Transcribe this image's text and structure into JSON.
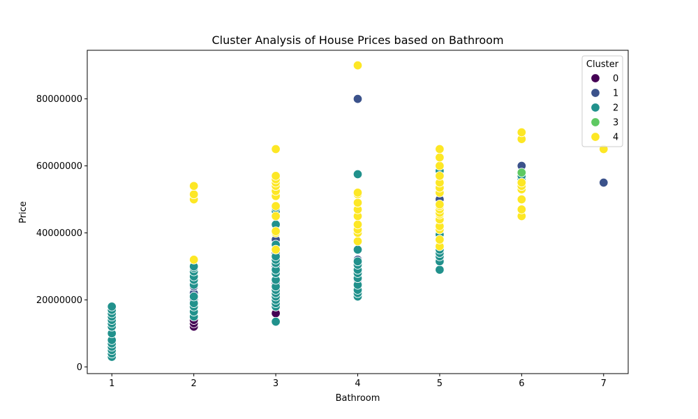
{
  "chart_data": {
    "type": "scatter",
    "title": "Cluster Analysis of House Prices based on Bathroom",
    "xlabel": "Bathroom",
    "ylabel": "Price",
    "xlim": [
      0.7,
      7.3
    ],
    "ylim": [
      -2000000,
      94500000
    ],
    "xticks": [
      1,
      2,
      3,
      4,
      5,
      6,
      7
    ],
    "yticks": [
      0,
      20000000,
      40000000,
      60000000,
      80000000
    ],
    "grid": false,
    "legend": {
      "title": "Cluster",
      "position": "top-right"
    },
    "series": [
      {
        "name": "0",
        "color": "#440154",
        "points": [
          [
            2,
            12000000
          ],
          [
            2,
            13000000
          ],
          [
            2,
            14000000
          ],
          [
            2,
            15000000
          ],
          [
            3,
            16000000
          ],
          [
            3,
            18000000
          ],
          [
            4,
            22000000
          ]
        ]
      },
      {
        "name": "1",
        "color": "#3b528b",
        "points": [
          [
            2,
            20000000
          ],
          [
            2,
            22000000
          ],
          [
            2,
            24000000
          ],
          [
            3,
            25000000
          ],
          [
            3,
            30000000
          ],
          [
            3,
            34000000
          ],
          [
            3,
            38000000
          ],
          [
            4,
            26000000
          ],
          [
            4,
            32000000
          ],
          [
            4,
            80000000
          ],
          [
            5,
            32000000
          ],
          [
            5,
            50000000
          ],
          [
            6,
            60000000
          ],
          [
            7,
            55000000
          ]
        ]
      },
      {
        "name": "2",
        "color": "#21918c",
        "points": [
          [
            1,
            3000000
          ],
          [
            1,
            4000000
          ],
          [
            1,
            5000000
          ],
          [
            1,
            6000000
          ],
          [
            1,
            7000000
          ],
          [
            1,
            8000000
          ],
          [
            1,
            10000000
          ],
          [
            1,
            12000000
          ],
          [
            1,
            13000000
          ],
          [
            1,
            14000000
          ],
          [
            1,
            15000000
          ],
          [
            1,
            16000000
          ],
          [
            1,
            17000000
          ],
          [
            1,
            18000000
          ],
          [
            2,
            15000000
          ],
          [
            2,
            16500000
          ],
          [
            2,
            18000000
          ],
          [
            2,
            19000000
          ],
          [
            2,
            21000000
          ],
          [
            2,
            24500000
          ],
          [
            2,
            26000000
          ],
          [
            2,
            27000000
          ],
          [
            2,
            28500000
          ],
          [
            2,
            29500000
          ],
          [
            2,
            30000000
          ],
          [
            3,
            13500000
          ],
          [
            3,
            18000000
          ],
          [
            3,
            19000000
          ],
          [
            3,
            20000000
          ],
          [
            3,
            21000000
          ],
          [
            3,
            22000000
          ],
          [
            3,
            23000000
          ],
          [
            3,
            24000000
          ],
          [
            3,
            26000000
          ],
          [
            3,
            28000000
          ],
          [
            3,
            29000000
          ],
          [
            3,
            31000000
          ],
          [
            3,
            32000000
          ],
          [
            3,
            33000000
          ],
          [
            3,
            35000000
          ],
          [
            3,
            36500000
          ],
          [
            3,
            40000000
          ],
          [
            3,
            42500000
          ],
          [
            3,
            46500000
          ],
          [
            3,
            47500000
          ],
          [
            4,
            21000000
          ],
          [
            4,
            22000000
          ],
          [
            4,
            23000000
          ],
          [
            4,
            24500000
          ],
          [
            4,
            26500000
          ],
          [
            4,
            28000000
          ],
          [
            4,
            29000000
          ],
          [
            4,
            30500000
          ],
          [
            4,
            31500000
          ],
          [
            4,
            35000000
          ],
          [
            4,
            57500000
          ],
          [
            5,
            29000000
          ],
          [
            5,
            31500000
          ],
          [
            5,
            33000000
          ],
          [
            5,
            34000000
          ],
          [
            5,
            35000000
          ],
          [
            5,
            39500000
          ],
          [
            5,
            58500000
          ],
          [
            6,
            56000000
          ],
          [
            6,
            57000000
          ]
        ]
      },
      {
        "name": "3",
        "color": "#5ec962",
        "points": [
          [
            6,
            58000000
          ]
        ]
      },
      {
        "name": "4",
        "color": "#fde725",
        "points": [
          [
            2,
            32000000
          ],
          [
            2,
            50000000
          ],
          [
            2,
            51500000
          ],
          [
            2,
            54000000
          ],
          [
            3,
            35000000
          ],
          [
            3,
            40000000
          ],
          [
            3,
            40500000
          ],
          [
            3,
            45000000
          ],
          [
            3,
            48000000
          ],
          [
            3,
            51000000
          ],
          [
            3,
            52500000
          ],
          [
            3,
            54000000
          ],
          [
            3,
            55000000
          ],
          [
            3,
            56000000
          ],
          [
            3,
            57000000
          ],
          [
            3,
            65000000
          ],
          [
            4,
            37500000
          ],
          [
            4,
            40000000
          ],
          [
            4,
            41000000
          ],
          [
            4,
            42500000
          ],
          [
            4,
            45000000
          ],
          [
            4,
            47000000
          ],
          [
            4,
            49000000
          ],
          [
            4,
            51500000
          ],
          [
            4,
            52000000
          ],
          [
            4,
            90000000
          ],
          [
            5,
            36000000
          ],
          [
            5,
            38000000
          ],
          [
            5,
            41000000
          ],
          [
            5,
            42000000
          ],
          [
            5,
            44000000
          ],
          [
            5,
            45500000
          ],
          [
            5,
            46000000
          ],
          [
            5,
            47000000
          ],
          [
            5,
            48000000
          ],
          [
            5,
            48500000
          ],
          [
            5,
            52000000
          ],
          [
            5,
            53500000
          ],
          [
            5,
            55000000
          ],
          [
            5,
            57000000
          ],
          [
            5,
            60000000
          ],
          [
            5,
            62500000
          ],
          [
            5,
            65000000
          ],
          [
            6,
            45000000
          ],
          [
            6,
            47000000
          ],
          [
            6,
            50000000
          ],
          [
            6,
            53000000
          ],
          [
            6,
            54000000
          ],
          [
            6,
            55000000
          ],
          [
            6,
            68000000
          ],
          [
            6,
            70000000
          ],
          [
            7,
            65000000
          ]
        ]
      }
    ]
  }
}
